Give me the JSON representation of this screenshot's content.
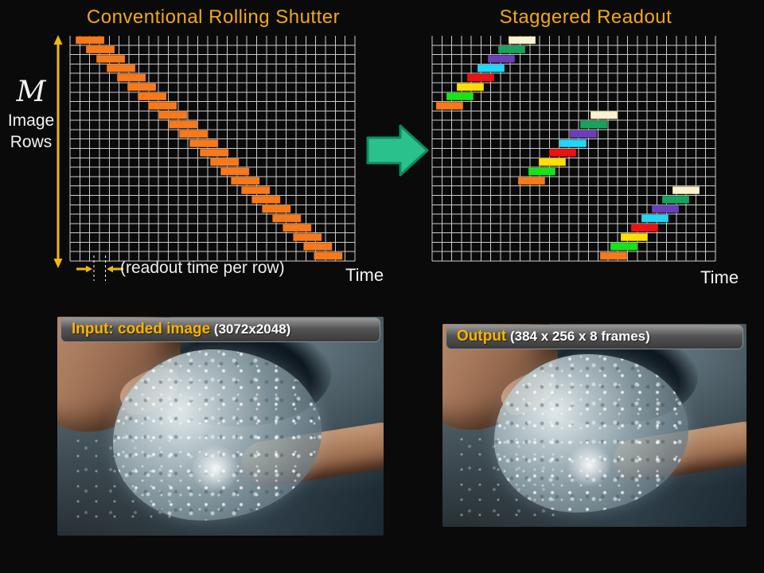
{
  "titles": {
    "left": "Conventional Rolling Shutter",
    "right": "Staggered Readout",
    "color": "#F2A916"
  },
  "row_axis": {
    "symbol": "M",
    "label_line1": "Image",
    "label_line2": "Rows"
  },
  "annotations": {
    "readout_label": "(readout time per row)",
    "time_left": "Time",
    "time_right": "Time"
  },
  "transform_arrow": {
    "fill": "#2BC18D",
    "stroke": "#0E8A5F"
  },
  "colors": {
    "grid_line": "#CCCCCC",
    "arrow_yellow": "#EFB811",
    "dashed_white": "#FFFFFF",
    "caption_highlight": "#FFB300",
    "caption_detail": "#FFFFFF"
  },
  "chart_data": [
    {
      "type": "gantt-grid",
      "title": "Conventional Rolling Shutter",
      "xlabel": "Time",
      "ylabel": "M Image Rows",
      "rows": 24,
      "cols": 29,
      "grid_color": "#CCCCCC",
      "block_width_cols": 2.92,
      "pattern": {
        "kind": "diagonal",
        "start_col": 0.57,
        "col_step_per_row": 1.054,
        "color": "#F8791A"
      },
      "annotation": "(readout time per row) = one grid column"
    },
    {
      "type": "gantt-grid",
      "title": "Staggered Readout",
      "xlabel": "Time",
      "rows": 24,
      "cols": 29,
      "grid_color": "#CCCCCC",
      "block_width_cols": 2.77,
      "pattern": {
        "kind": "staggered",
        "groups": 3,
        "rows_per_group": 8,
        "start_col": 7.82,
        "group_col_offset": 8.39,
        "col_step_per_row": -1.06,
        "frame_colors": [
          "#FAF3CC",
          "#18A35B",
          "#6940B9",
          "#20D7F6",
          "#EE1111",
          "#FFDF00",
          "#17E417",
          "#F8791A"
        ]
      }
    }
  ],
  "photos": [
    {
      "caption_highlight": "Input: coded image",
      "caption_detail": " (3072x2048)"
    },
    {
      "caption_highlight": "Output",
      "caption_detail": " (384 x 256 x 8 frames)"
    }
  ]
}
